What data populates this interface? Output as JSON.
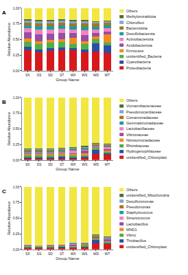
{
  "chart_data": [
    {
      "type": "bar",
      "title": "A",
      "stacked": true,
      "grid": false,
      "x_label": "Group Name",
      "y_label": "Relative Abundance",
      "categories": [
        "SX",
        "SS",
        "SD",
        "ST",
        "WX",
        "WS",
        "WD",
        "WT"
      ],
      "ylim": [
        0,
        1
      ],
      "yticks": [
        {
          "value": 0,
          "label": "0.00"
        },
        {
          "value": 0.25,
          "label": "0.25"
        },
        {
          "value": 0.5,
          "label": "0.50"
        },
        {
          "value": 0.75,
          "label": "0.75"
        },
        {
          "value": 1,
          "label": "1.00"
        }
      ],
      "series": [
        {
          "name": "Proteobacteria",
          "color": "#d7191c",
          "values": [
            0.33,
            0.3,
            0.32,
            0.33,
            0.33,
            0.29,
            0.31,
            0.28
          ]
        },
        {
          "name": "Cyanobacteria",
          "color": "#2c4fa3",
          "values": [
            0.05,
            0.04,
            0.04,
            0.04,
            0.03,
            0.05,
            0.13,
            0.12
          ]
        },
        {
          "name": "unidentified_Bacteria",
          "color": "#4daf4a",
          "values": [
            0.08,
            0.09,
            0.09,
            0.09,
            0.07,
            0.09,
            0.06,
            0.05
          ]
        },
        {
          "name": "Firmicutes",
          "color": "#f18c22",
          "values": [
            0.05,
            0.04,
            0.04,
            0.04,
            0.1,
            0.04,
            0.05,
            0.13
          ]
        },
        {
          "name": "Acidobacteriota",
          "color": "#984ea3",
          "values": [
            0.1,
            0.11,
            0.1,
            0.1,
            0.07,
            0.1,
            0.05,
            0.05
          ]
        },
        {
          "name": "Actinobacteriota",
          "color": "#f781bf",
          "values": [
            0.07,
            0.08,
            0.07,
            0.07,
            0.06,
            0.08,
            0.06,
            0.05
          ]
        },
        {
          "name": "Desulfobacterota",
          "color": "#1b9e9e",
          "values": [
            0.04,
            0.05,
            0.05,
            0.05,
            0.05,
            0.05,
            0.04,
            0.04
          ]
        },
        {
          "name": "Bacteroidota",
          "color": "#a6761d",
          "values": [
            0.05,
            0.05,
            0.05,
            0.05,
            0.05,
            0.06,
            0.06,
            0.05
          ]
        },
        {
          "name": "Chloroflexi",
          "color": "#7fa7d6",
          "values": [
            0.03,
            0.03,
            0.03,
            0.03,
            0.03,
            0.03,
            0.02,
            0.02
          ]
        },
        {
          "name": "Methylomirabilota",
          "color": "#556b2f",
          "values": [
            0.02,
            0.02,
            0.02,
            0.02,
            0.02,
            0.02,
            0.01,
            0.01
          ]
        },
        {
          "name": "Others",
          "color": "#f2e641",
          "values": [
            0.18,
            0.19,
            0.19,
            0.18,
            0.19,
            0.19,
            0.21,
            0.2
          ]
        }
      ]
    },
    {
      "type": "bar",
      "title": "B",
      "stacked": true,
      "grid": false,
      "x_label": "Group Name",
      "y_label": "Relative Abundance",
      "categories": [
        "SX",
        "SS",
        "SD",
        "ST",
        "WX",
        "WS",
        "WD",
        "WT"
      ],
      "ylim": [
        0,
        1
      ],
      "yticks": [
        {
          "value": 0,
          "label": "0.00"
        },
        {
          "value": 0.25,
          "label": "0.25"
        },
        {
          "value": 0.5,
          "label": "0.50"
        },
        {
          "value": 0.75,
          "label": "0.75"
        },
        {
          "value": 1,
          "label": "1.00"
        }
      ],
      "series": [
        {
          "name": "unidentified_Chloroplast",
          "color": "#d7191c",
          "values": [
            0.02,
            0.02,
            0.02,
            0.02,
            0.02,
            0.03,
            0.1,
            0.09
          ]
        },
        {
          "name": "Hydrogenophilaceae",
          "color": "#2c4fa3",
          "values": [
            0.02,
            0.02,
            0.02,
            0.03,
            0.02,
            0.02,
            0.06,
            0.02
          ]
        },
        {
          "name": "Rhizobiaceae",
          "color": "#4daf4a",
          "values": [
            0.03,
            0.03,
            0.03,
            0.03,
            0.03,
            0.03,
            0.02,
            0.02
          ]
        },
        {
          "name": "Nitrosomonadaceae",
          "color": "#f18c22",
          "values": [
            0.03,
            0.03,
            0.03,
            0.03,
            0.03,
            0.03,
            0.02,
            0.02
          ]
        },
        {
          "name": "Vibrionaceae",
          "color": "#984ea3",
          "values": [
            0.01,
            0.01,
            0.01,
            0.01,
            0.01,
            0.04,
            0.01,
            0.02
          ]
        },
        {
          "name": "Lactobacillaceae",
          "color": "#f781bf",
          "values": [
            0.01,
            0.01,
            0.01,
            0.01,
            0.04,
            0.01,
            0.01,
            0.04
          ]
        },
        {
          "name": "Gemmatimonadaceae",
          "color": "#1b9e9e",
          "values": [
            0.02,
            0.02,
            0.02,
            0.02,
            0.02,
            0.02,
            0.01,
            0.01
          ]
        },
        {
          "name": "Comamonadaceae",
          "color": "#a6761d",
          "values": [
            0.02,
            0.02,
            0.02,
            0.02,
            0.02,
            0.02,
            0.02,
            0.02
          ]
        },
        {
          "name": "Pseudonocardiaceae",
          "color": "#7fa7d6",
          "values": [
            0.01,
            0.01,
            0.01,
            0.01,
            0.01,
            0.01,
            0.01,
            0.01
          ]
        },
        {
          "name": "Vicinamibacteraceae",
          "color": "#556b2f",
          "values": [
            0.02,
            0.02,
            0.02,
            0.02,
            0.01,
            0.02,
            0.01,
            0.01
          ]
        },
        {
          "name": "Others",
          "color": "#f2e641",
          "values": [
            0.81,
            0.81,
            0.81,
            0.8,
            0.79,
            0.77,
            0.73,
            0.74
          ]
        }
      ]
    },
    {
      "type": "bar",
      "title": "C",
      "stacked": true,
      "grid": false,
      "x_label": "Group Name",
      "y_label": "Relative Abundance",
      "categories": [
        "SX",
        "SS",
        "SD",
        "ST",
        "WX",
        "WS",
        "WD",
        "WT"
      ],
      "ylim": [
        0,
        1
      ],
      "yticks": [
        {
          "value": 0,
          "label": "0.00"
        },
        {
          "value": 0.25,
          "label": "0.25"
        },
        {
          "value": 0.5,
          "label": "0.50"
        },
        {
          "value": 0.75,
          "label": "0.75"
        },
        {
          "value": 1,
          "label": "1.00"
        }
      ],
      "series": [
        {
          "name": "unidentified_Chloroplast",
          "color": "#d7191c",
          "values": [
            0.02,
            0.02,
            0.02,
            0.02,
            0.02,
            0.03,
            0.1,
            0.09
          ]
        },
        {
          "name": "Thiobacillus",
          "color": "#2c4fa3",
          "values": [
            0.01,
            0.01,
            0.01,
            0.02,
            0.01,
            0.01,
            0.05,
            0.01
          ]
        },
        {
          "name": "Vibrio",
          "color": "#4daf4a",
          "values": [
            0.01,
            0.01,
            0.01,
            0.01,
            0.01,
            0.04,
            0.01,
            0.02
          ]
        },
        {
          "name": "MND1",
          "color": "#f18c22",
          "values": [
            0.01,
            0.01,
            0.01,
            0.01,
            0.01,
            0.01,
            0.01,
            0.01
          ]
        },
        {
          "name": "Lactobacillus",
          "color": "#984ea3",
          "values": [
            0.01,
            0,
            0.01,
            0.01,
            0.03,
            0.01,
            0.01,
            0.03
          ]
        },
        {
          "name": "Streptococcus",
          "color": "#f781bf",
          "values": [
            0,
            0,
            0,
            0,
            0.01,
            0,
            0.01,
            0.01
          ]
        },
        {
          "name": "Staphylococcus",
          "color": "#1b9e9e",
          "values": [
            0,
            0,
            0,
            0,
            0.01,
            0,
            0.01,
            0.01
          ]
        },
        {
          "name": "Pseudomonas",
          "color": "#a6761d",
          "values": [
            0,
            0,
            0,
            0,
            0,
            0,
            0.02,
            0.01
          ]
        },
        {
          "name": "Desulforomonas",
          "color": "#7fa7d6",
          "values": [
            0.01,
            0.01,
            0.01,
            0.01,
            0.01,
            0.01,
            0.01,
            0.01
          ]
        },
        {
          "name": "unidentified_Mitochondria",
          "color": "#556b2f",
          "values": [
            0,
            0,
            0,
            0,
            0,
            0,
            0.01,
            0.01
          ]
        },
        {
          "name": "Others",
          "color": "#f2e641",
          "values": [
            0.93,
            0.94,
            0.93,
            0.92,
            0.89,
            0.89,
            0.76,
            0.79
          ]
        }
      ]
    }
  ]
}
